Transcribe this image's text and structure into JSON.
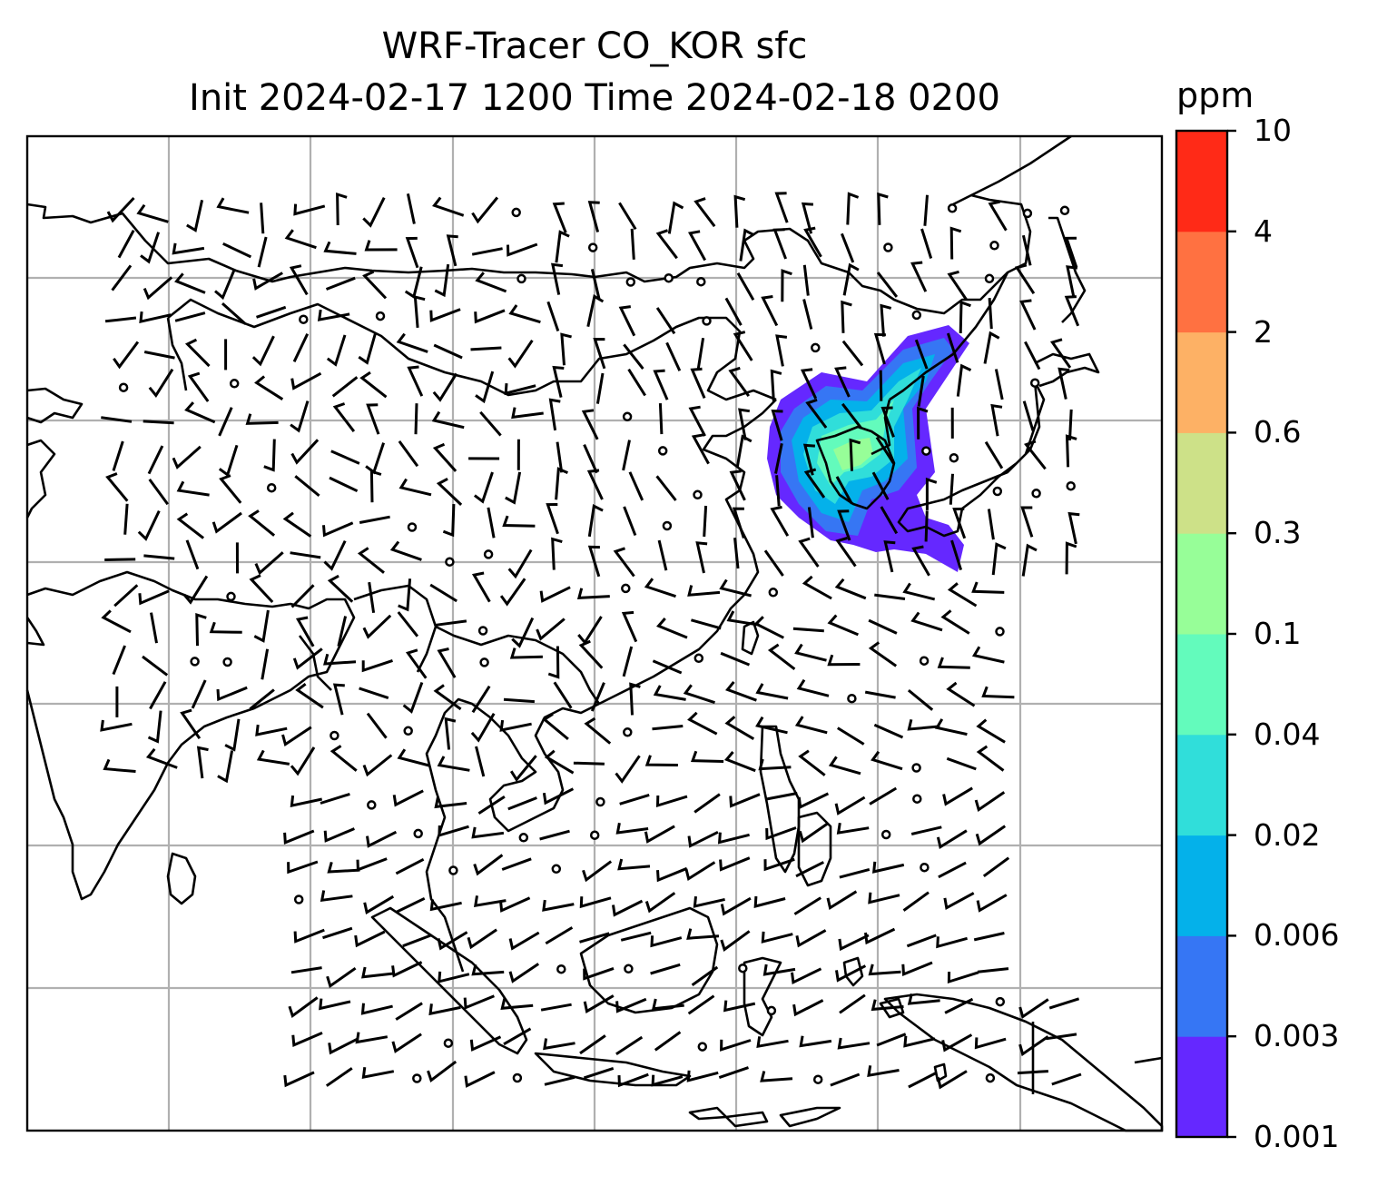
{
  "title": {
    "line1": "WRF-Tracer CO_KOR sfc",
    "line2": "Init 2024-02-17 1200 Time 2024-02-18 0200"
  },
  "colorbar": {
    "unit": "ppm",
    "ticks": [
      "0.001",
      "0.003",
      "0.006",
      "0.02",
      "0.04",
      "0.1",
      "0.3",
      "0.6",
      "2",
      "4",
      "10"
    ],
    "colors": [
      "#6528ff",
      "#3676f4",
      "#04b1ea",
      "#30deda",
      "#63fbbc",
      "#97fe98",
      "#cde188",
      "#fdb165",
      "#ff7141",
      "#ff2a17"
    ]
  },
  "map": {
    "gridlines": true,
    "features": [
      "coastlines",
      "country-borders",
      "wind-barbs",
      "CO-tracer-plume"
    ],
    "plume_region": "Korea / northeast China / Japan Sea"
  },
  "chart_data": {
    "type": "heatmap",
    "title": "WRF-Tracer CO_KOR sfc\nInit 2024-02-17 1200 Time 2024-02-18 0200",
    "variable": "CO_KOR",
    "level": "sfc",
    "init": "2024-02-17 1200",
    "valid_time": "2024-02-18 0200",
    "units": "ppm",
    "levels": [
      0.001,
      0.003,
      0.006,
      0.02,
      0.04,
      0.1,
      0.3,
      0.6,
      2,
      4,
      10
    ],
    "colormap": "rainbow",
    "legend": "colorbar-right",
    "grid": true
  }
}
